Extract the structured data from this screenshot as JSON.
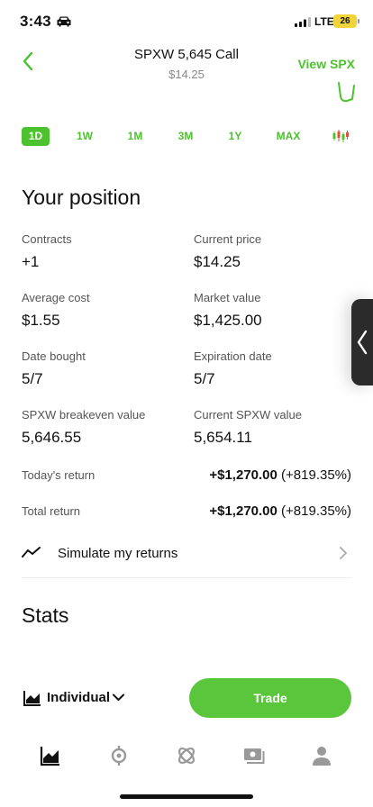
{
  "status_bar": {
    "time": "3:43",
    "network": "LTE",
    "battery": "26"
  },
  "header": {
    "title": "SPXW 5,645 Call",
    "subtitle": "$14.25",
    "view_link": "View SPX"
  },
  "range_tabs": [
    {
      "label": "1D",
      "active": true
    },
    {
      "label": "1W",
      "active": false
    },
    {
      "label": "1M",
      "active": false
    },
    {
      "label": "3M",
      "active": false
    },
    {
      "label": "1Y",
      "active": false
    },
    {
      "label": "MAX",
      "active": false
    }
  ],
  "position": {
    "title": "Your position",
    "contracts_label": "Contracts",
    "contracts_value": "+1",
    "current_price_label": "Current price",
    "current_price_value": "$14.25",
    "average_cost_label": "Average cost",
    "average_cost_value": "$1.55",
    "market_value_label": "Market value",
    "market_value_value": "$1,425.00",
    "date_bought_label": "Date bought",
    "date_bought_value": "5/7",
    "expiration_date_label": "Expiration date",
    "expiration_date_value": "5/7",
    "breakeven_label": "SPXW breakeven value",
    "breakeven_value": "5,646.55",
    "current_underlying_label": "Current SPXW value",
    "current_underlying_value": "5,654.11",
    "todays_return_label": "Today's return",
    "todays_return_amount": "+$1,270.00",
    "todays_return_percent": "(+819.35%)",
    "total_return_label": "Total return",
    "total_return_amount": "+$1,270.00",
    "total_return_percent": "(+819.35%)",
    "simulate_label": "Simulate my returns"
  },
  "stats": {
    "title": "Stats"
  },
  "footer": {
    "account_label": "Individual",
    "trade_label": "Trade"
  },
  "colors": {
    "accent": "#4cc32e",
    "trade_button": "#5ac63c",
    "battery": "#f0d43a"
  },
  "icons": [
    "car-icon",
    "signal-icon",
    "back-chevron-icon",
    "candles-icon",
    "trend-icon",
    "chevron-right-icon",
    "chevron-left-icon",
    "chart-icon",
    "chevron-down-icon",
    "investing-icon",
    "crypto-icon",
    "retirement-icon",
    "cash-icon",
    "account-icon"
  ]
}
